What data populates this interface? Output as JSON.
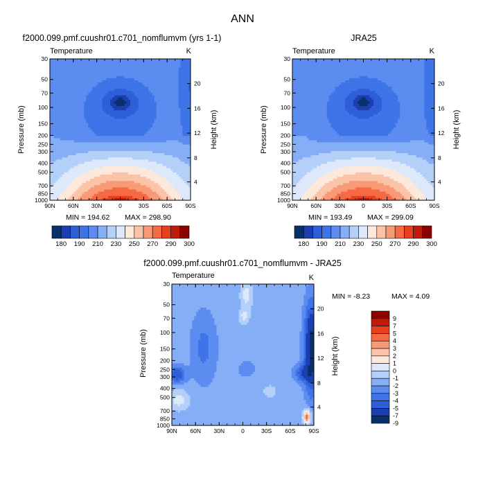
{
  "page_title": "ANN",
  "chart_data": [
    {
      "type": "heatmap",
      "title": "f2000.099.pmf.cuushr01.c701_nomflumvm (yrs 1-1)",
      "subtitle_left": "Temperature",
      "subtitle_right": "K",
      "ylabel": "Pressure (mb)",
      "ylabel_right": "Height (km)",
      "x_ticks": [
        "90N",
        "60N",
        "30N",
        "0",
        "30S",
        "60S",
        "90S"
      ],
      "y_ticks": [
        30,
        50,
        70,
        100,
        150,
        200,
        250,
        300,
        400,
        500,
        700,
        850,
        1000
      ],
      "y_ticks_right": [
        20,
        16,
        12,
        8,
        4
      ],
      "min_label": "MIN = 194.62",
      "max_label": "MAX = 298.90",
      "colorbar_levels": [
        "180",
        "190",
        "210",
        "230",
        "250",
        "270",
        "290",
        "300"
      ],
      "colormap": [
        "#08306b",
        "#1c3fb0",
        "#2e5ed8",
        "#3e74e8",
        "#5c8cf0",
        "#85aef7",
        "#b4cff8",
        "#dde9fb",
        "#fde8dc",
        "#fbc4a8",
        "#f89a76",
        "#f56a44",
        "#e8401c",
        "#c21a0a",
        "#8c0000"
      ],
      "levels": [
        180,
        185,
        190,
        200,
        210,
        220,
        230,
        240,
        250,
        260,
        270,
        280,
        290,
        295,
        300
      ]
    },
    {
      "type": "heatmap",
      "title": "JRA25",
      "subtitle_left": "Temperature",
      "subtitle_right": "K",
      "ylabel": "Pressure (mb)",
      "ylabel_right": "Height (km)",
      "x_ticks": [
        "90N",
        "60N",
        "30N",
        "0",
        "30S",
        "60S",
        "90S"
      ],
      "y_ticks": [
        30,
        50,
        70,
        100,
        150,
        200,
        250,
        300,
        400,
        500,
        700,
        850,
        1000
      ],
      "y_ticks_right": [
        20,
        16,
        12,
        8,
        4
      ],
      "min_label": "MIN = 193.49",
      "max_label": "MAX = 299.09",
      "colorbar_levels": [
        "180",
        "190",
        "210",
        "230",
        "250",
        "270",
        "290",
        "300"
      ]
    },
    {
      "type": "heatmap",
      "title": "f2000.099.pmf.cuushr01.c701_nomflumvm - JRA25",
      "subtitle_left": "Temperature",
      "subtitle_right": "K",
      "ylabel": "Pressure (mb)",
      "ylabel_right": "Height (km)",
      "x_ticks": [
        "90N",
        "60N",
        "30N",
        "0",
        "30S",
        "60S",
        "90S"
      ],
      "y_ticks": [
        30,
        50,
        70,
        100,
        150,
        200,
        250,
        300,
        400,
        500,
        700,
        850,
        1000
      ],
      "y_ticks_right": [
        20,
        16,
        12,
        8,
        4
      ],
      "min_label": "MIN = -8.23",
      "max_label": "MAX = 4.09",
      "colorbar_levels": [
        "9",
        "7",
        "5",
        "4",
        "3",
        "2",
        "1",
        "0",
        "-1",
        "-2",
        "-3",
        "-4",
        "-5",
        "-7",
        "-9"
      ],
      "colormap": [
        "#8c0000",
        "#c21a0a",
        "#e8401c",
        "#f56a44",
        "#f89a76",
        "#fbc4a8",
        "#fde8dc",
        "#dde9fb",
        "#b4cff8",
        "#85aef7",
        "#5c8cf0",
        "#3e74e8",
        "#2e5ed8",
        "#1c3fb0",
        "#08306b"
      ]
    }
  ]
}
